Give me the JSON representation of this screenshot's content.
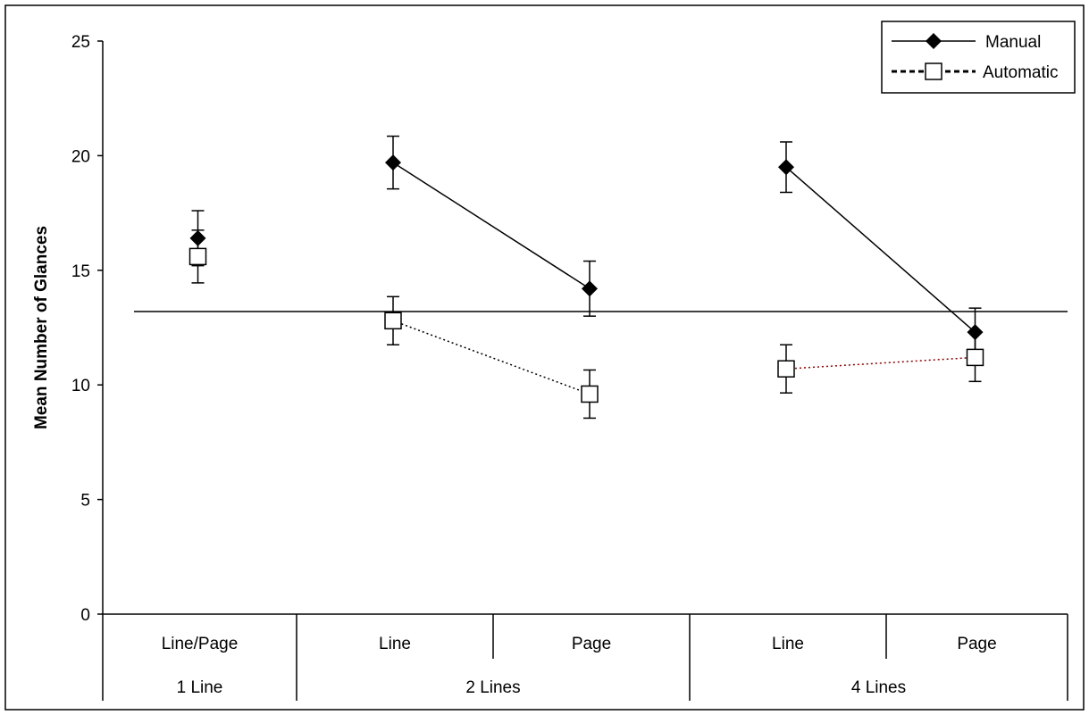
{
  "chart_data": {
    "type": "line",
    "title": "",
    "ylabel": "Mean Number of Glances",
    "xlabel": "",
    "ylim": [
      0,
      25
    ],
    "yticks": [
      0,
      5,
      10,
      15,
      20,
      25
    ],
    "reference_line": 13.2,
    "x_level1": [
      "Line/Page",
      "Line",
      "Page",
      "Line",
      "Page"
    ],
    "x_level2": [
      "1 Line",
      "2 Lines",
      "4 Lines"
    ],
    "legend_position": "top-right",
    "series": [
      {
        "name": "Manual",
        "marker": "filled-diamond",
        "line_style": "solid",
        "color": "#000000",
        "values": [
          16.4,
          19.7,
          14.2,
          19.5,
          12.3
        ],
        "error": [
          1.2,
          1.15,
          1.2,
          1.1,
          1.05
        ]
      },
      {
        "name": "Automatic",
        "marker": "open-square",
        "line_style": "dotted",
        "color": "#000000",
        "segment_colors": [
          "#000000",
          "#8b0000"
        ],
        "values": [
          15.6,
          12.8,
          9.6,
          10.7,
          11.2
        ],
        "error": [
          1.15,
          1.05,
          1.05,
          1.05,
          1.05
        ]
      }
    ]
  }
}
